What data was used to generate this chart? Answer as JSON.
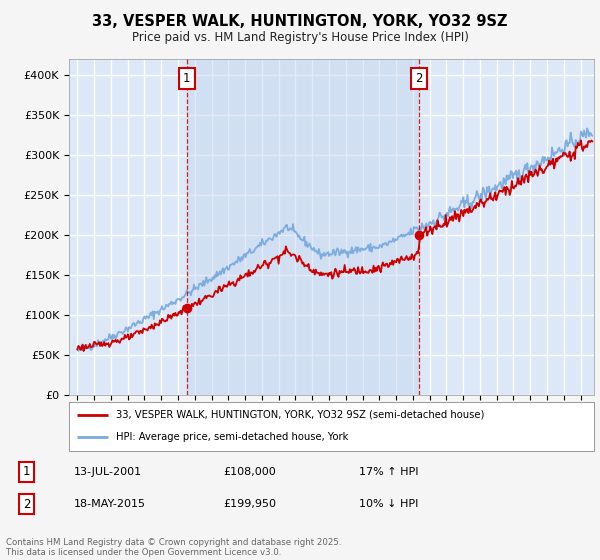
{
  "title": "33, VESPER WALK, HUNTINGTON, YORK, YO32 9SZ",
  "subtitle": "Price paid vs. HM Land Registry's House Price Index (HPI)",
  "legend_line1": "33, VESPER WALK, HUNTINGTON, YORK, YO32 9SZ (semi-detached house)",
  "legend_line2": "HPI: Average price, semi-detached house, York",
  "annotation1_date": "13-JUL-2001",
  "annotation1_price": "£108,000",
  "annotation1_hpi": "17% ↑ HPI",
  "annotation2_date": "18-MAY-2015",
  "annotation2_price": "£199,950",
  "annotation2_hpi": "10% ↓ HPI",
  "footnote": "Contains HM Land Registry data © Crown copyright and database right 2025.\nThis data is licensed under the Open Government Licence v3.0.",
  "sale1_x": 2001.53,
  "sale1_y": 108000,
  "sale2_x": 2015.37,
  "sale2_y": 199950,
  "ylim": [
    0,
    420000
  ],
  "xlim_start": 1994.5,
  "xlim_end": 2025.8,
  "fig_bg": "#f5f5f5",
  "plot_bg": "#dce8f8",
  "shade_color": "#c8d8f0",
  "grid_color": "#ffffff",
  "red_color": "#cc0000",
  "blue_color": "#7aaadd",
  "vline_color": "#cc0000"
}
